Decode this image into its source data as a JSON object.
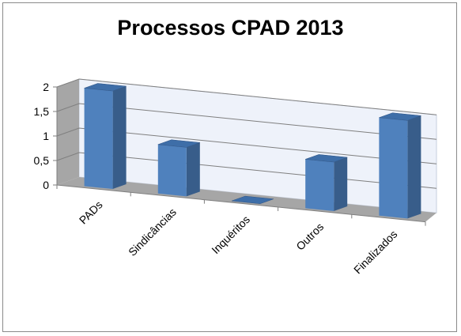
{
  "chart_data": {
    "type": "bar",
    "style": "3d-column",
    "title": "Processos CPAD 2013",
    "categories": [
      "PADs",
      "Sindicâncias",
      "Inquéritos",
      "Outros",
      "Finalizados"
    ],
    "values": [
      2,
      1,
      0,
      1,
      2
    ],
    "ylim": [
      0,
      2
    ],
    "yticks": [
      "0",
      "0,5",
      "1",
      "1,5",
      "2"
    ],
    "grid": true,
    "legend": "none",
    "colors": {
      "bar_front": "#4f81bd",
      "bar_side": "#385d8a",
      "bar_top": "#3e6ea8",
      "back_wall": "#eef2fa",
      "side_wall": "#a6a6a6",
      "floor": "#a6a6a6",
      "grid": "#7f7f7f"
    }
  }
}
